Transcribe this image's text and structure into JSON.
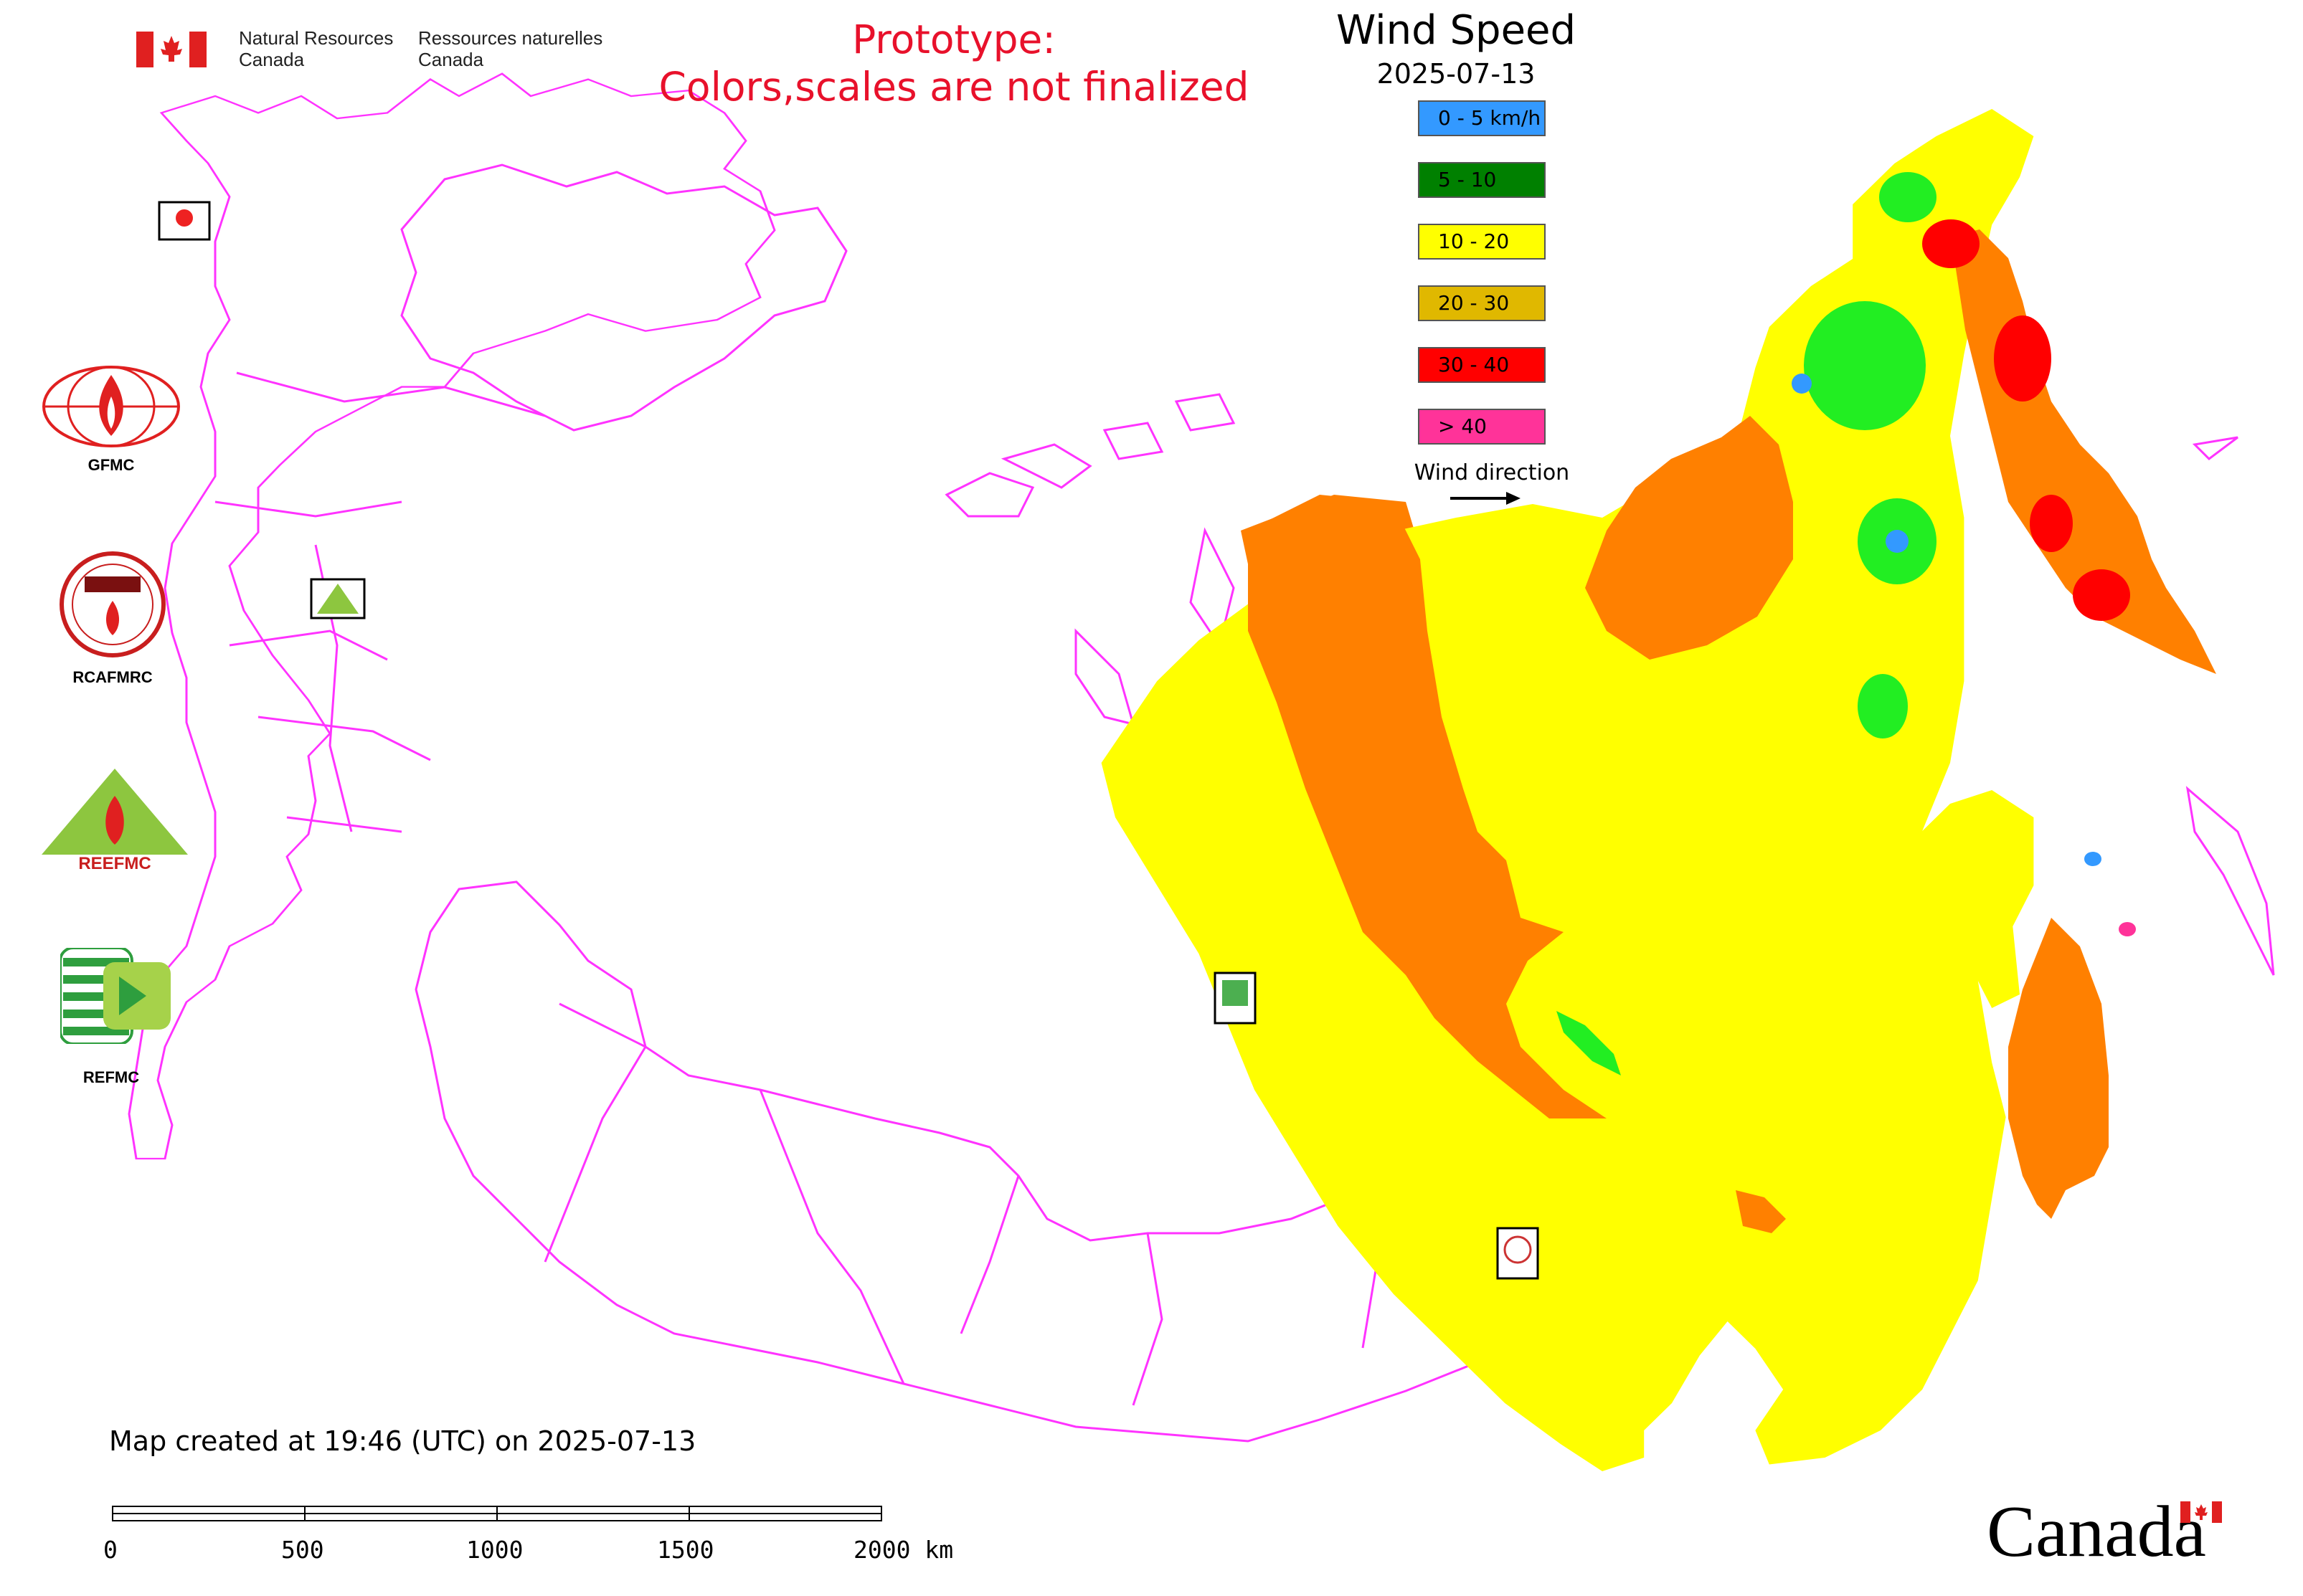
{
  "header": {
    "org_en_line1": "Natural Resources",
    "org_en_line2": "Canada",
    "org_fr_line1": "Ressources naturelles",
    "org_fr_line2": "Canada",
    "prototype_line1": "Prototype:",
    "prototype_line2": "Colors,scales are not finalized"
  },
  "legend": {
    "title": "Wind Speed",
    "date": "2025-07-13",
    "items": [
      {
        "label": "0 - 5 km/h",
        "color": "#3399ff"
      },
      {
        "label": "5 - 10",
        "color": "#008000"
      },
      {
        "label": "10 - 20",
        "color": "#ffff00"
      },
      {
        "label": "20 - 30",
        "color": "#e0b800"
      },
      {
        "label": "30 - 40",
        "color": "#ff0000"
      },
      {
        "label": "> 40",
        "color": "#ff3399"
      }
    ],
    "wind_direction_label": "Wind direction"
  },
  "logos": [
    {
      "label": "GFMC",
      "icon": "gfmc-logo-icon"
    },
    {
      "label": "RCAFMRC",
      "icon": "rcafmrc-logo-icon"
    },
    {
      "label": "REEFMC",
      "icon": "reefmc-logo-icon"
    },
    {
      "label": "REFMC",
      "icon": "refmc-logo-icon"
    }
  ],
  "map": {
    "border_color": "#ff33ff",
    "zone_colors": {
      "calm": "#3399ff",
      "light": "#22ee22",
      "moderate": "#ffff00",
      "strong": "#ff8000",
      "very_strong": "#ff0000",
      "extreme": "#ff3399"
    }
  },
  "footer": {
    "created": "Map created at 19:46 (UTC) on 2025-07-13",
    "scale_labels": [
      "0",
      "500",
      "1000",
      "1500",
      "2000 km"
    ],
    "canada_wordmark": "Canada"
  }
}
